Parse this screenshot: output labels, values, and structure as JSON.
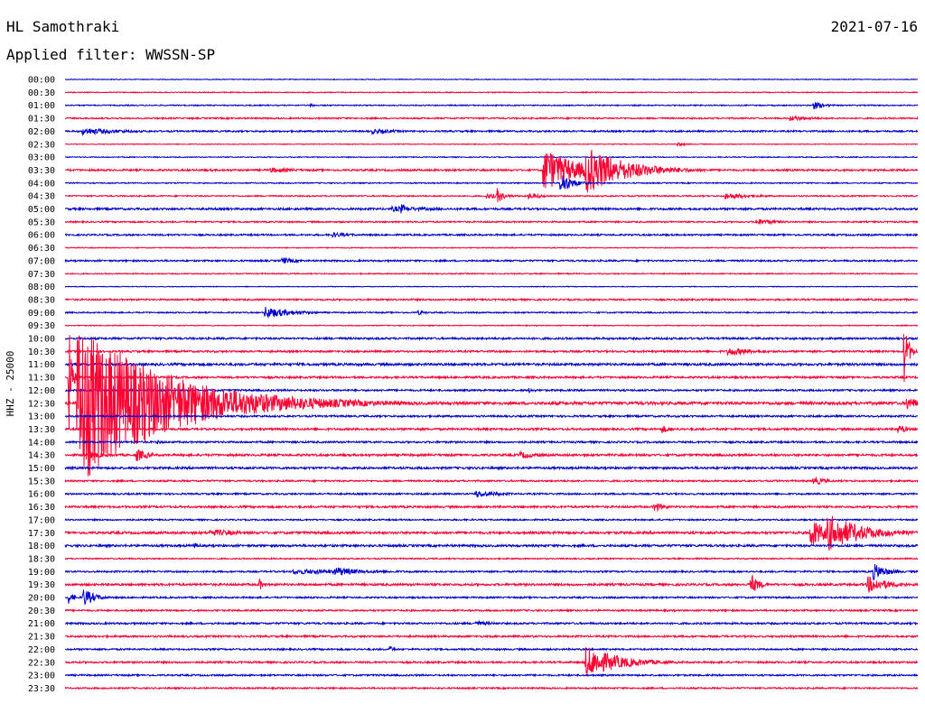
{
  "header": {
    "station": "HL Samothraki",
    "date": "2021-07-16",
    "filter": "Applied filter: WWSSN-SP"
  },
  "chart_data": {
    "type": "line",
    "title": "HL Samothraki",
    "ylabel": "HHZ - 25000",
    "colors": {
      "even_row": "#0000cc",
      "odd_row": "#ff0033"
    },
    "rows": [
      "00:00",
      "00:30",
      "01:00",
      "01:30",
      "02:00",
      "02:30",
      "03:00",
      "03:30",
      "04:00",
      "04:30",
      "05:00",
      "05:30",
      "06:00",
      "06:30",
      "07:00",
      "07:30",
      "08:00",
      "08:30",
      "09:00",
      "09:30",
      "10:00",
      "10:30",
      "11:00",
      "11:30",
      "12:00",
      "12:30",
      "13:00",
      "13:30",
      "14:00",
      "14:30",
      "15:00",
      "15:30",
      "16:00",
      "16:30",
      "17:00",
      "17:30",
      "18:00",
      "18:30",
      "19:00",
      "19:30",
      "20:00",
      "20:30",
      "21:00",
      "21:30",
      "22:00",
      "22:30",
      "23:00",
      "23:30"
    ],
    "noise_level": [
      0.4,
      0.5,
      0.6,
      0.8,
      0.9,
      0.4,
      0.5,
      1.0,
      0.6,
      0.7,
      1.1,
      0.8,
      0.9,
      0.5,
      0.9,
      0.6,
      0.4,
      0.9,
      0.7,
      0.5,
      1.1,
      1.0,
      1.3,
      1.1,
      1.0,
      1.6,
      1.0,
      1.1,
      1.0,
      1.2,
      1.2,
      0.9,
      0.9,
      1.1,
      0.8,
      1.3,
      1.2,
      0.7,
      0.9,
      1.2,
      0.9,
      0.9,
      1.0,
      1.0,
      0.9,
      1.0,
      0.9,
      0.8
    ],
    "events": [
      {
        "row": 2,
        "minute": 8.6,
        "amplitude": 2,
        "duration": 0.3
      },
      {
        "row": 2,
        "minute": 26.3,
        "amplitude": 5,
        "duration": 0.4
      },
      {
        "row": 3,
        "minute": 25.5,
        "amplitude": 3,
        "duration": 1.0
      },
      {
        "row": 4,
        "minute": 0.6,
        "amplitude": 4,
        "duration": 1.6
      },
      {
        "row": 4,
        "minute": 10.8,
        "amplitude": 3,
        "duration": 1.0
      },
      {
        "row": 5,
        "minute": 21.5,
        "amplitude": 3,
        "duration": 0.3
      },
      {
        "row": 7,
        "minute": 7.2,
        "amplitude": 3,
        "duration": 1.2
      },
      {
        "row": 7,
        "minute": 16.8,
        "amplitude": 26,
        "duration": 1.2
      },
      {
        "row": 7,
        "minute": 18.3,
        "amplitude": 28,
        "duration": 1.4
      },
      {
        "row": 8,
        "minute": 17.4,
        "amplitude": 14,
        "duration": 0.4
      },
      {
        "row": 9,
        "minute": 14.8,
        "amplitude": 3,
        "duration": 1.0
      },
      {
        "row": 9,
        "minute": 15.2,
        "amplitude": 10,
        "duration": 0.2
      },
      {
        "row": 9,
        "minute": 16.3,
        "amplitude": 4,
        "duration": 0.5
      },
      {
        "row": 9,
        "minute": 23.2,
        "amplitude": 4,
        "duration": 1.0
      },
      {
        "row": 10,
        "minute": 11.5,
        "amplitude": 3,
        "duration": 2.0
      },
      {
        "row": 10,
        "minute": 11.8,
        "amplitude": 6,
        "duration": 0.3
      },
      {
        "row": 11,
        "minute": 24.3,
        "amplitude": 4,
        "duration": 0.8
      },
      {
        "row": 12,
        "minute": 9.4,
        "amplitude": 3,
        "duration": 0.8
      },
      {
        "row": 14,
        "minute": 7.6,
        "amplitude": 4,
        "duration": 0.6
      },
      {
        "row": 18,
        "minute": 7.0,
        "amplitude": 7,
        "duration": 1.0
      },
      {
        "row": 18,
        "minute": 12.4,
        "amplitude": 3,
        "duration": 0.3
      },
      {
        "row": 21,
        "minute": 23.3,
        "amplitude": 5,
        "duration": 1.0
      },
      {
        "row": 21,
        "minute": 29.5,
        "amplitude": 40,
        "duration": 0.15
      },
      {
        "row": 23,
        "minute": 0.1,
        "amplitude": 90,
        "duration": 0.1
      },
      {
        "row": 24,
        "minute": 16.3,
        "amplitude": 3,
        "duration": 0.3
      },
      {
        "row": 25,
        "minute": 0.4,
        "amplitude": 95,
        "duration": 3.0
      },
      {
        "row": 25,
        "minute": 2.8,
        "amplitude": 4,
        "duration": 1.4
      },
      {
        "row": 25,
        "minute": 29.6,
        "amplitude": 8,
        "duration": 0.5
      },
      {
        "row": 27,
        "minute": 21.0,
        "amplitude": 5,
        "duration": 0.3
      },
      {
        "row": 27,
        "minute": 29.3,
        "amplitude": 6,
        "duration": 0.3
      },
      {
        "row": 28,
        "minute": 3.2,
        "amplitude": 3,
        "duration": 0.3
      },
      {
        "row": 29,
        "minute": 0.9,
        "amplitude": 4,
        "duration": 0.6
      },
      {
        "row": 29,
        "minute": 2.5,
        "amplitude": 8,
        "duration": 0.4
      },
      {
        "row": 29,
        "minute": 16.0,
        "amplitude": 4,
        "duration": 0.8
      },
      {
        "row": 31,
        "minute": 26.3,
        "amplitude": 6,
        "duration": 0.4
      },
      {
        "row": 32,
        "minute": 14.4,
        "amplitude": 4,
        "duration": 1.0
      },
      {
        "row": 33,
        "minute": 20.7,
        "amplitude": 6,
        "duration": 0.4
      },
      {
        "row": 35,
        "minute": 5.1,
        "amplitude": 4,
        "duration": 1.4
      },
      {
        "row": 35,
        "minute": 26.2,
        "amplitude": 18,
        "duration": 0.6
      },
      {
        "row": 35,
        "minute": 26.8,
        "amplitude": 22,
        "duration": 1.2
      },
      {
        "row": 36,
        "minute": 4.5,
        "amplitude": 4,
        "duration": 0.3
      },
      {
        "row": 38,
        "minute": 8.0,
        "amplitude": 3,
        "duration": 4.0
      },
      {
        "row": 38,
        "minute": 9.5,
        "amplitude": 6,
        "duration": 0.8
      },
      {
        "row": 38,
        "minute": 28.4,
        "amplitude": 10,
        "duration": 0.5
      },
      {
        "row": 39,
        "minute": 6.8,
        "amplitude": 9,
        "duration": 0.15
      },
      {
        "row": 39,
        "minute": 24.1,
        "amplitude": 13,
        "duration": 0.3
      },
      {
        "row": 39,
        "minute": 28.2,
        "amplitude": 10,
        "duration": 0.8
      },
      {
        "row": 40,
        "minute": 0.1,
        "amplitude": 8,
        "duration": 0.2
      },
      {
        "row": 40,
        "minute": 0.6,
        "amplitude": 12,
        "duration": 0.4
      },
      {
        "row": 42,
        "minute": 14.4,
        "amplitude": 3,
        "duration": 0.8
      },
      {
        "row": 44,
        "minute": 11.4,
        "amplitude": 4,
        "duration": 0.2
      },
      {
        "row": 45,
        "minute": 18.3,
        "amplitude": 18,
        "duration": 1.2
      }
    ]
  }
}
